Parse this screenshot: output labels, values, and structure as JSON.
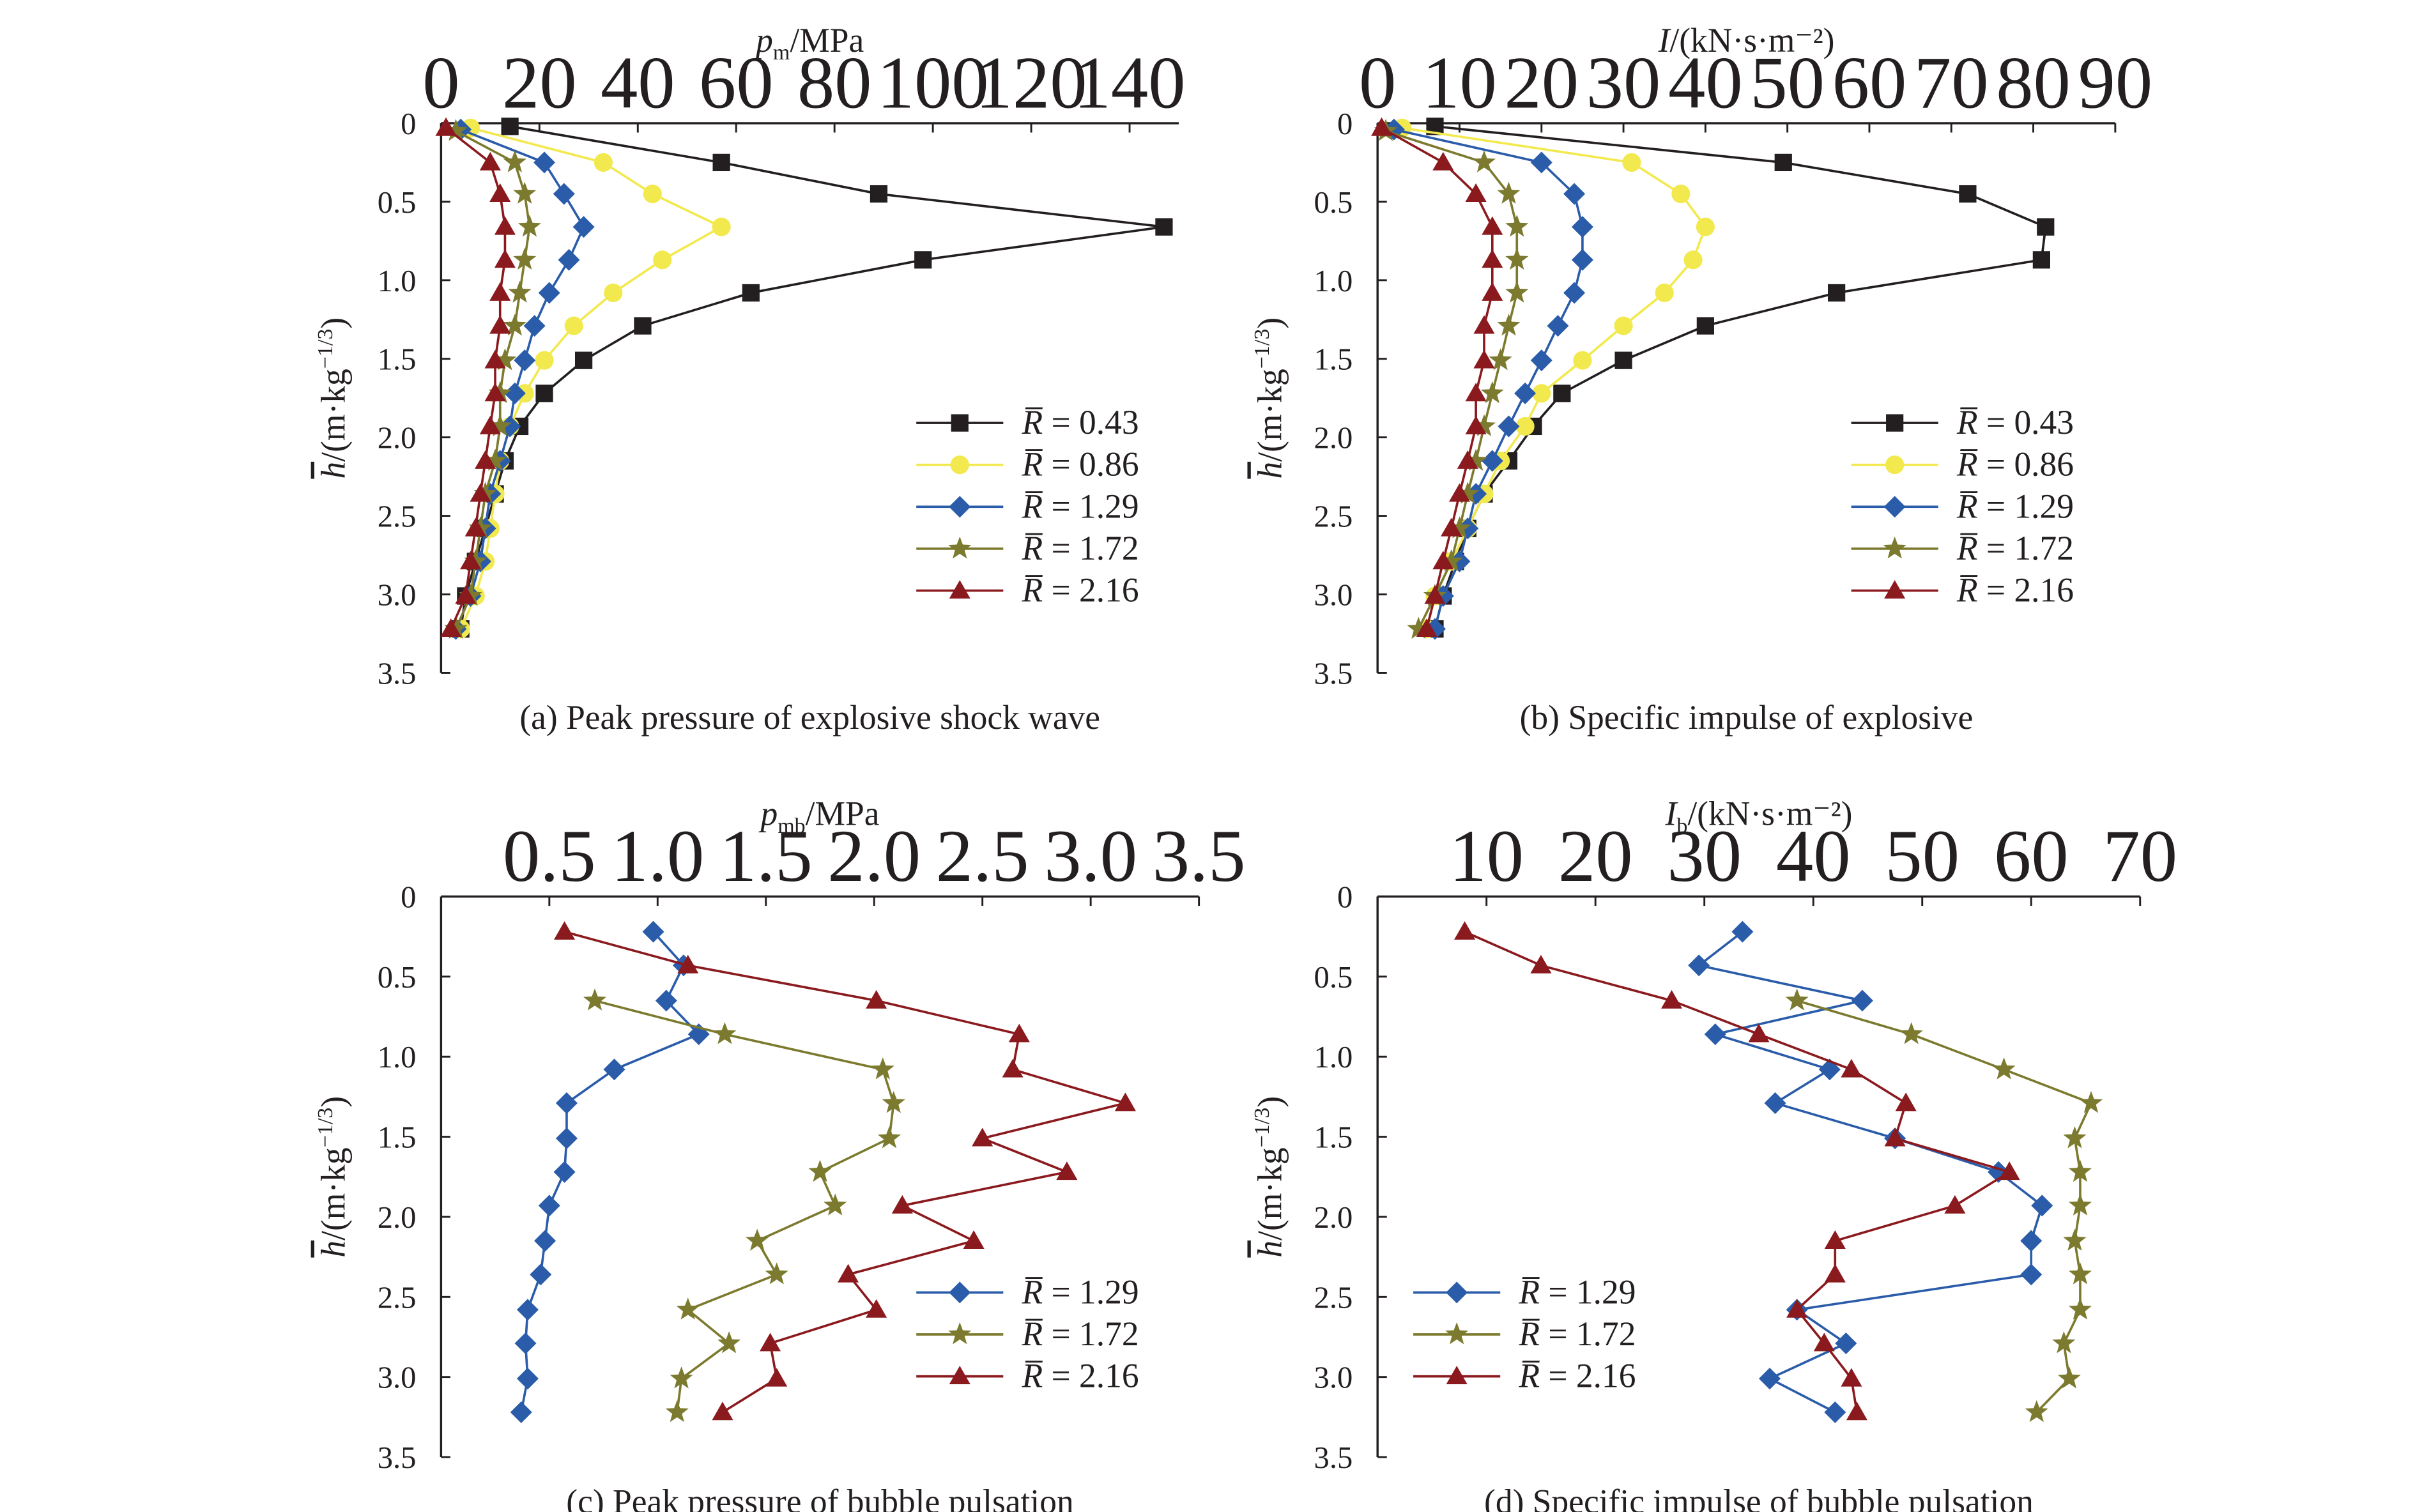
{
  "colors": {
    "axis": "#231f20",
    "series_0_43": "#231f20",
    "series_0_86": "#f2e94e",
    "series_1_29": "#2a5caa",
    "series_1_72": "#7b7a2e",
    "series_2_16": "#8b1a1f"
  },
  "chart_data": [
    {
      "id": "a",
      "type": "line",
      "caption": "(a) Peak pressure of explosive shock wave",
      "x_title": {
        "main": "p",
        "sub": "m",
        "rest": "/MPa"
      },
      "y_title": "/(m·kg⁻¹ᐟ³)",
      "y_title_symbol": "h",
      "xlim": [
        0,
        150
      ],
      "ylim": [
        0,
        3.5
      ],
      "x_ticks": [
        0,
        20,
        40,
        60,
        80,
        100,
        120,
        140
      ],
      "x_tick_labels": [
        "0",
        "20",
        "40",
        "60",
        "80",
        "100",
        "120",
        "140"
      ],
      "y_ticks": [
        0,
        0.5,
        1.0,
        1.5,
        2.0,
        2.5,
        3.0,
        3.5
      ],
      "y_tick_labels": [
        "0",
        "0.5",
        "1.0",
        "1.5",
        "2.0",
        "2.5",
        "3.0",
        "3.5"
      ],
      "legend_position": "lower-right",
      "series": [
        {
          "name": "R̅ = 0.43",
          "color_key": "series_0_43",
          "marker": "square",
          "x": [
            14,
            57,
            89,
            147,
            98,
            63,
            41,
            29,
            21,
            16,
            13,
            11,
            9,
            7,
            5,
            4
          ],
          "y": [
            0.02,
            0.25,
            0.45,
            0.66,
            0.87,
            1.08,
            1.29,
            1.51,
            1.72,
            1.93,
            2.15,
            2.36,
            2.58,
            2.79,
            3.01,
            3.22
          ]
        },
        {
          "name": "R̅ = 0.86",
          "color_key": "series_0_86",
          "marker": "circle",
          "x": [
            6,
            33,
            43,
            57,
            45,
            35,
            27,
            21,
            17,
            14,
            12,
            11,
            10,
            9,
            7,
            4
          ],
          "y": [
            0.03,
            0.25,
            0.45,
            0.66,
            0.87,
            1.08,
            1.29,
            1.51,
            1.72,
            1.93,
            2.15,
            2.36,
            2.58,
            2.79,
            3.01,
            3.22
          ]
        },
        {
          "name": "R̅ = 1.29",
          "color_key": "series_1_29",
          "marker": "diamond",
          "x": [
            4,
            21,
            25,
            29,
            26,
            22,
            19,
            17,
            15,
            14,
            12,
            10,
            9,
            8,
            6,
            3
          ],
          "y": [
            0.04,
            0.25,
            0.45,
            0.66,
            0.87,
            1.08,
            1.29,
            1.51,
            1.72,
            1.93,
            2.15,
            2.36,
            2.58,
            2.79,
            3.01,
            3.22
          ]
        },
        {
          "name": "R̅ = 1.72",
          "color_key": "series_1_72",
          "marker": "star",
          "x": [
            3,
            15,
            17,
            18,
            17,
            16,
            15,
            13,
            12,
            12,
            11,
            9,
            8,
            7,
            6,
            3
          ],
          "y": [
            0.05,
            0.25,
            0.45,
            0.66,
            0.87,
            1.08,
            1.29,
            1.51,
            1.72,
            1.93,
            2.15,
            2.36,
            2.58,
            2.79,
            3.01,
            3.22
          ]
        },
        {
          "name": "R̅ = 2.16",
          "color_key": "series_2_16",
          "marker": "triangle",
          "x": [
            1,
            10,
            12,
            13,
            13,
            12,
            12,
            11,
            11,
            10,
            9,
            8,
            7,
            6,
            5,
            2
          ],
          "y": [
            0.03,
            0.25,
            0.45,
            0.66,
            0.87,
            1.08,
            1.29,
            1.51,
            1.72,
            1.93,
            2.15,
            2.36,
            2.58,
            2.79,
            3.01,
            3.22
          ]
        }
      ]
    },
    {
      "id": "b",
      "type": "line",
      "caption": "(b) Specific impulse of explosive",
      "x_title": {
        "main": "I",
        "sub": "",
        "rest": "/(kN·s·m⁻²)"
      },
      "y_title": "/(m·kg⁻¹ᐟ³)",
      "y_title_symbol": "h",
      "xlim": [
        0,
        90
      ],
      "ylim": [
        0,
        3.5
      ],
      "x_ticks": [
        0,
        10,
        20,
        30,
        40,
        50,
        60,
        70,
        80,
        90
      ],
      "x_tick_labels": [
        "0",
        "10",
        "20",
        "30",
        "40",
        "50",
        "60",
        "70",
        "80",
        "90"
      ],
      "y_ticks": [
        0,
        0.5,
        1.0,
        1.5,
        2.0,
        2.5,
        3.0,
        3.5
      ],
      "y_tick_labels": [
        "0",
        "0.5",
        "1.0",
        "1.5",
        "2.0",
        "2.5",
        "3.0",
        "3.5"
      ],
      "legend_position": "lower-right",
      "series": [
        {
          "name": "R̅ = 0.43",
          "color_key": "series_0_43",
          "marker": "square",
          "x": [
            7,
            49.5,
            72,
            81.5,
            81,
            56,
            40,
            30,
            22.5,
            19,
            16,
            13,
            11,
            9.5,
            8,
            7
          ],
          "y": [
            0.02,
            0.25,
            0.45,
            0.66,
            0.87,
            1.08,
            1.29,
            1.51,
            1.72,
            1.93,
            2.15,
            2.36,
            2.58,
            2.79,
            3.01,
            3.22
          ]
        },
        {
          "name": "R̅ = 0.86",
          "color_key": "series_0_86",
          "marker": "circle",
          "x": [
            3,
            31,
            37,
            40,
            38.5,
            35,
            30,
            25,
            20,
            18,
            15,
            13,
            11,
            9,
            7,
            6
          ],
          "y": [
            0.03,
            0.25,
            0.45,
            0.66,
            0.87,
            1.08,
            1.29,
            1.51,
            1.72,
            1.93,
            2.15,
            2.36,
            2.58,
            2.79,
            3.01,
            3.22
          ]
        },
        {
          "name": "R̅ = 1.29",
          "color_key": "series_1_29",
          "marker": "diamond",
          "x": [
            2,
            20,
            24,
            25,
            25,
            24,
            22,
            20,
            18,
            16,
            14,
            12,
            11,
            10,
            8,
            7
          ],
          "y": [
            0.04,
            0.25,
            0.45,
            0.66,
            0.87,
            1.08,
            1.29,
            1.51,
            1.72,
            1.93,
            2.15,
            2.36,
            2.58,
            2.79,
            3.01,
            3.22
          ]
        },
        {
          "name": "R̅ = 1.72",
          "color_key": "series_1_72",
          "marker": "star",
          "x": [
            1,
            13,
            16,
            17,
            17,
            17,
            16,
            15,
            14,
            13,
            12,
            11,
            10,
            9,
            7,
            5
          ],
          "y": [
            0.05,
            0.25,
            0.45,
            0.66,
            0.87,
            1.08,
            1.29,
            1.51,
            1.72,
            1.93,
            2.15,
            2.36,
            2.58,
            2.79,
            3.01,
            3.22
          ]
        },
        {
          "name": "R̅ = 2.16",
          "color_key": "series_2_16",
          "marker": "triangle",
          "x": [
            0.5,
            8,
            12,
            14,
            14,
            14,
            13,
            13,
            12,
            12,
            11,
            10,
            9,
            8,
            7,
            6
          ],
          "y": [
            0.03,
            0.25,
            0.45,
            0.66,
            0.87,
            1.08,
            1.29,
            1.51,
            1.72,
            1.93,
            2.15,
            2.36,
            2.58,
            2.79,
            3.01,
            3.22
          ]
        }
      ]
    },
    {
      "id": "c",
      "type": "line",
      "caption": "(c) Peak pressure of bubble pulsation",
      "x_title": {
        "main": "p",
        "sub": "mb",
        "rest": "/MPa"
      },
      "y_title": "/(m·kg⁻¹ᐟ³)",
      "y_title_symbol": "h",
      "xlim": [
        0,
        3.5
      ],
      "ylim": [
        0,
        3.5
      ],
      "x_ticks": [
        0.5,
        1.0,
        1.5,
        2.0,
        2.5,
        3.0,
        3.5
      ],
      "x_tick_labels": [
        "0.5",
        "1.0",
        "1.5",
        "2.0",
        "2.5",
        "3.0",
        "3.5"
      ],
      "y_ticks": [
        0,
        0.5,
        1.0,
        1.5,
        2.0,
        2.5,
        3.0,
        3.5
      ],
      "y_tick_labels": [
        "0",
        "0.5",
        "1.0",
        "1.5",
        "2.0",
        "2.5",
        "3.0",
        "3.5"
      ],
      "legend_position": "lower-right",
      "series": [
        {
          "name": "R̅ = 1.29",
          "color_key": "series_1_29",
          "marker": "diamond",
          "x": [
            0.98,
            1.12,
            1.04,
            1.19,
            0.8,
            0.58,
            0.58,
            0.57,
            0.5,
            0.48,
            0.46,
            0.4,
            0.39,
            0.4,
            0.37
          ],
          "y": [
            0.22,
            0.43,
            0.65,
            0.86,
            1.08,
            1.29,
            1.51,
            1.72,
            1.93,
            2.15,
            2.36,
            2.58,
            2.79,
            3.01,
            3.22
          ]
        },
        {
          "name": "R̅ = 1.72",
          "color_key": "series_1_72",
          "marker": "star",
          "x": [
            0.71,
            1.31,
            2.04,
            2.09,
            2.07,
            1.75,
            1.82,
            1.46,
            1.55,
            1.14,
            1.33,
            1.11,
            1.09
          ],
          "y": [
            0.65,
            0.86,
            1.08,
            1.29,
            1.51,
            1.72,
            1.93,
            2.15,
            2.36,
            2.58,
            2.79,
            3.01,
            3.22
          ]
        },
        {
          "name": "R̅ = 2.16",
          "color_key": "series_2_16",
          "marker": "triangle",
          "x": [
            0.57,
            1.14,
            2.01,
            2.67,
            2.64,
            3.16,
            2.5,
            2.89,
            2.13,
            2.46,
            1.88,
            2.01,
            1.52,
            1.55,
            1.3
          ],
          "y": [
            0.22,
            0.43,
            0.65,
            0.86,
            1.08,
            1.29,
            1.51,
            1.72,
            1.93,
            2.15,
            2.36,
            2.58,
            2.79,
            3.01,
            3.22
          ]
        }
      ]
    },
    {
      "id": "d",
      "type": "line",
      "caption": "(d) Specific impulse of bubble pulsation",
      "x_title": {
        "main": "I",
        "sub": "b",
        "rest": "/(kN·s·m⁻²)"
      },
      "y_title": "/(m·kg⁻¹ᐟ³)",
      "y_title_symbol": "h",
      "xlim": [
        0,
        70
      ],
      "ylim": [
        0,
        3.5
      ],
      "x_ticks": [
        10,
        20,
        30,
        40,
        50,
        60,
        70
      ],
      "x_tick_labels": [
        "10",
        "20",
        "30",
        "40",
        "50",
        "60",
        "70"
      ],
      "y_ticks": [
        0,
        0.5,
        1.0,
        1.5,
        2.0,
        2.5,
        3.0,
        3.5
      ],
      "y_tick_labels": [
        "0",
        "0.5",
        "1.0",
        "1.5",
        "2.0",
        "2.5",
        "3.0",
        "3.5"
      ],
      "legend_position": "lower-left",
      "series": [
        {
          "name": "R̅ = 1.29",
          "color_key": "series_1_29",
          "marker": "diamond",
          "x": [
            33.5,
            29.5,
            44.5,
            31.0,
            41.5,
            36.5,
            47.5,
            57.0,
            61.0,
            60.0,
            60.0,
            38.5,
            43.0,
            36.0,
            42.0
          ],
          "y": [
            0.22,
            0.43,
            0.65,
            0.86,
            1.08,
            1.29,
            1.51,
            1.72,
            1.93,
            2.15,
            2.36,
            2.58,
            2.79,
            3.01,
            3.22
          ]
        },
        {
          "name": "R̅ = 1.72",
          "color_key": "series_1_72",
          "marker": "star",
          "x": [
            38.5,
            49.0,
            57.5,
            65.5,
            64.0,
            64.5,
            64.5,
            64.0,
            64.5,
            64.5,
            63.0,
            63.5,
            60.5
          ],
          "y": [
            0.65,
            0.86,
            1.08,
            1.29,
            1.51,
            1.72,
            1.93,
            2.15,
            2.36,
            2.58,
            2.79,
            3.01,
            3.22
          ]
        },
        {
          "name": "R̅ = 2.16",
          "color_key": "series_2_16",
          "marker": "triangle",
          "x": [
            8.0,
            15.0,
            27.0,
            35.0,
            43.5,
            48.5,
            47.5,
            58.0,
            53.0,
            42.0,
            42.0,
            38.5,
            41.0,
            43.5,
            44.0
          ],
          "y": [
            0.22,
            0.43,
            0.65,
            0.86,
            1.08,
            1.29,
            1.51,
            1.72,
            1.93,
            2.15,
            2.36,
            2.58,
            2.79,
            3.01,
            3.22
          ]
        }
      ]
    }
  ]
}
